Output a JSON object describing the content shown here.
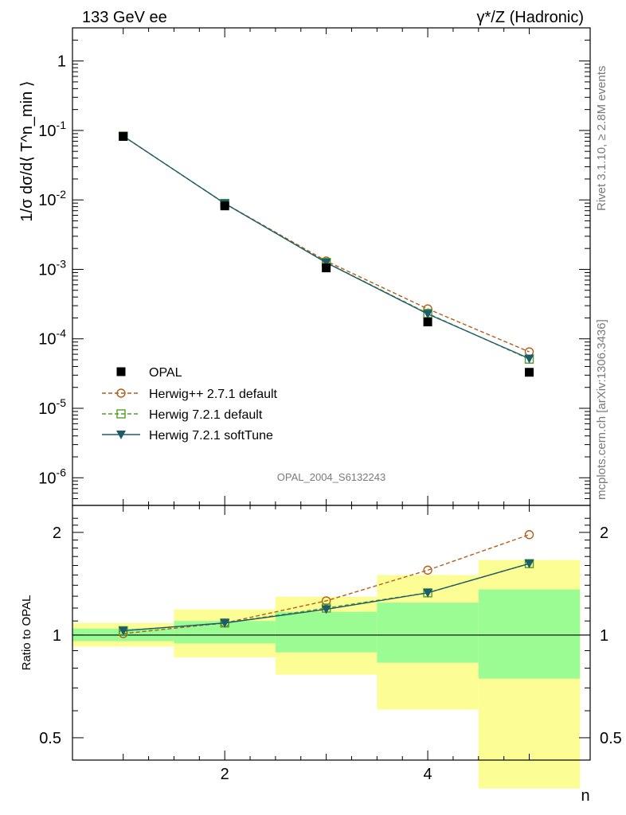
{
  "header": {
    "left": "133 GeV ee",
    "right": "γ*/Z (Hadronic)"
  },
  "side_labels": {
    "rivet": "Rivet 3.1.10, ≥ 2.8M events",
    "mcplots": "mcplots.cern.ch [arXiv:1306.3436]"
  },
  "watermark": "OPAL_2004_S6132243",
  "colors": {
    "data": "#000000",
    "herwigpp": "#b35e1a",
    "herwig721": "#4f9e2d",
    "softtune": "#1e5b6b",
    "band_inner": "#9cfc94",
    "band_outer": "#fdfd96"
  },
  "chart_data": [
    {
      "type": "scatter",
      "panel": "main",
      "ylabel": "1/σ dσ/d⟨ T^n_min ⟩",
      "yscale": "log",
      "ylim": [
        4e-07,
        3
      ],
      "xlim": [
        0.5,
        5.6
      ],
      "y_ticks": [
        "10^-6",
        "10^-5",
        "10^-4",
        "10^-3",
        "10^-2",
        "10^-1",
        "1"
      ],
      "legend_position": "lower-left",
      "x": [
        1,
        2,
        3,
        4,
        5
      ],
      "series": [
        {
          "name": "OPAL",
          "key": "data",
          "marker": "filled-square",
          "line": "none",
          "values": [
            0.082,
            0.0082,
            0.00105,
            0.000175,
            3.3e-05
          ]
        },
        {
          "name": "Herwig++ 2.7.1 default",
          "key": "herwigpp",
          "marker": "open-circle",
          "line": "dashed",
          "values": [
            0.083,
            0.0089,
            0.00132,
            0.00027,
            6.5e-05
          ]
        },
        {
          "name": "Herwig 7.2.1 default",
          "key": "herwig721",
          "marker": "open-square",
          "line": "dashed",
          "values": [
            0.083,
            0.0089,
            0.00126,
            0.000232,
            5.1e-05
          ]
        },
        {
          "name": "Herwig 7.2.1 softTune",
          "key": "softtune",
          "marker": "filled-triangle-down",
          "line": "solid",
          "values": [
            0.083,
            0.0089,
            0.00125,
            0.000228,
            5.2e-05
          ]
        }
      ]
    },
    {
      "type": "line",
      "panel": "ratio",
      "ylabel": "Ratio to OPAL",
      "xlabel": "n",
      "yscale": "log",
      "ylim": [
        0.43,
        2.4
      ],
      "xlim": [
        0.5,
        5.6
      ],
      "y_ticks": [
        "0.5",
        "1",
        "2"
      ],
      "x_ticks": [
        "2",
        "4"
      ],
      "x": [
        1,
        2,
        3,
        4,
        5
      ],
      "bands": {
        "bin_edges": [
          0.5,
          1.5,
          2.5,
          3.5,
          4.5,
          5.5
        ],
        "inner_low": [
          0.96,
          0.945,
          0.89,
          0.83,
          0.745
        ],
        "inner_high": [
          1.045,
          1.1,
          1.17,
          1.245,
          1.36
        ],
        "outer_low": [
          0.925,
          0.86,
          0.765,
          0.605,
          0.355
        ],
        "outer_high": [
          1.085,
          1.19,
          1.295,
          1.5,
          1.66
        ]
      },
      "series": [
        {
          "name": "Herwig++ 2.7.1 default",
          "key": "herwigpp",
          "marker": "open-circle",
          "line": "dashed",
          "values": [
            1.01,
            1.085,
            1.26,
            1.55,
            1.97
          ]
        },
        {
          "name": "Herwig 7.2.1 default",
          "key": "herwig721",
          "marker": "open-square",
          "line": "dashed",
          "values": [
            1.03,
            1.085,
            1.2,
            1.33,
            1.62
          ]
        },
        {
          "name": "Herwig 7.2.1 softTune",
          "key": "softtune",
          "marker": "filled-triangle-down",
          "line": "solid",
          "values": [
            1.03,
            1.085,
            1.19,
            1.33,
            1.62
          ]
        }
      ]
    }
  ]
}
